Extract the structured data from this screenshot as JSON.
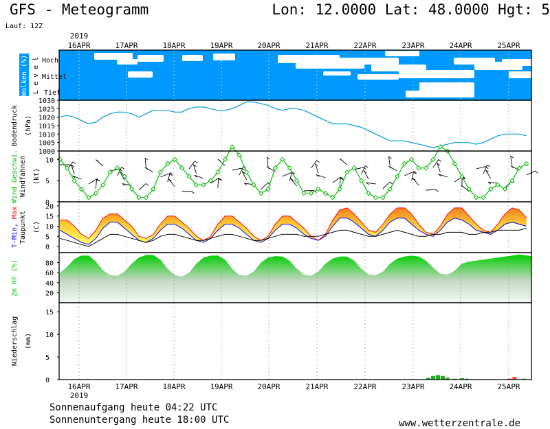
{
  "header": {
    "title": "GFS - Meteogramm",
    "location": "Lon: 12.0000 Lat: 48.0000 Hgt: 5",
    "run": "Lauf: 12Z"
  },
  "footer": {
    "sunrise": "Sonnenaufgang heute 04:22 UTC",
    "sunset": "Sonnenuntergang heute 18:00 UTC",
    "site": "www.wetterzentrale.de"
  },
  "colors": {
    "cloud_sky": "#0099ff",
    "cloud": "#ffffff",
    "pressure": "#0099dd",
    "wind": "#00bb00",
    "tmax": "#ff0000",
    "tmin": "#0000ff",
    "humidity": "#00cc00",
    "precip": "#22aa22"
  },
  "chart_data": {
    "type": "line",
    "x_labels": [
      "16APR",
      "17APR",
      "18APR",
      "19APR",
      "20APR",
      "21APR",
      "22APR",
      "23APR",
      "24APR",
      "25APR"
    ],
    "year_label": "2019",
    "panels": {
      "wolken": {
        "ylabel": "Wolken (%)",
        "ylabel2": "L e v e l",
        "levels": [
          "Hoch",
          "Mittel",
          "Tief"
        ]
      },
      "druck": {
        "ylabel": "Bodendruck",
        "unit": "(hPa)",
        "ylim": [
          1000,
          1030
        ],
        "ticks": [
          "1030",
          "1025",
          "1020",
          "1015",
          "1010",
          "1005",
          "1000"
        ],
        "values": [
          1020,
          1021,
          1020,
          1018,
          1016,
          1017,
          1020,
          1022,
          1023,
          1023,
          1022,
          1020,
          1022,
          1024,
          1024,
          1024,
          1023,
          1023,
          1025,
          1026,
          1026,
          1025,
          1024,
          1024,
          1025,
          1027,
          1029,
          1029,
          1028,
          1027,
          1025,
          1024,
          1025,
          1025,
          1024,
          1022,
          1020,
          1018,
          1016,
          1016,
          1016,
          1015,
          1014,
          1012,
          1010,
          1008,
          1006,
          1006,
          1006,
          1005,
          1004,
          1003,
          1002,
          1003,
          1004,
          1005,
          1005,
          1005,
          1004,
          1005,
          1007,
          1009,
          1010,
          1010,
          1010,
          1009
        ]
      },
      "wind": {
        "ylabel": "Wind Geschwi.",
        "ylabel2": "Windfahnen",
        "unit": "(kt)",
        "ylim": [
          0,
          12
        ],
        "ticks": [
          "10",
          "5",
          "0"
        ],
        "values": [
          10,
          8,
          5,
          3,
          1,
          2,
          4,
          7,
          8,
          6,
          3,
          1,
          1,
          3,
          7,
          9,
          10,
          8,
          6,
          4,
          4,
          5,
          7,
          10,
          13,
          11,
          7,
          4,
          2,
          3,
          8,
          10,
          8,
          5,
          2,
          2,
          3,
          2,
          1,
          3,
          7,
          8,
          5,
          2,
          1,
          1,
          3,
          6,
          9,
          10,
          8,
          8,
          10,
          13,
          12,
          9,
          6,
          3,
          1,
          1,
          3,
          4,
          3,
          5,
          8,
          9
        ]
      },
      "temp": {
        "ylabel": "T-Min, Max",
        "ylabel2": "Taupunkt",
        "unit": "(C)",
        "ylim": [
          -3,
          22
        ],
        "ticks": [
          "20",
          "15",
          "10",
          "5",
          "0"
        ],
        "series": [
          {
            "name": "T-Max",
            "values": [
              13,
              13,
              10,
              6,
              4,
              8,
              14,
              16,
              16,
              13,
              10,
              5,
              4,
              6,
              11,
              15,
              15,
              12,
              9,
              5,
              3,
              5,
              11,
              15,
              15,
              12,
              9,
              5,
              3,
              5,
              11,
              15,
              15,
              12,
              9,
              5,
              3,
              6,
              13,
              18,
              19,
              16,
              12,
              8,
              7,
              11,
              16,
              19,
              19,
              16,
              11,
              7,
              6,
              10,
              16,
              19,
              19,
              15,
              11,
              8,
              7,
              11,
              16,
              19,
              18,
              14
            ]
          },
          {
            "name": "T-Min",
            "values": [
              8,
              6,
              4,
              2,
              1,
              4,
              9,
              12,
              12,
              9,
              6,
              3,
              2,
              4,
              8,
              11,
              11,
              9,
              6,
              3,
              2,
              4,
              8,
              11,
              11,
              9,
              6,
              3,
              2,
              4,
              8,
              11,
              11,
              9,
              6,
              4,
              3,
              5,
              10,
              14,
              14,
              12,
              9,
              6,
              5,
              8,
              12,
              14,
              14,
              11,
              8,
              6,
              5,
              8,
              12,
              14,
              13,
              11,
              8,
              7,
              6,
              8,
              11,
              12,
              11,
              10
            ]
          },
          {
            "name": "Taupunkt",
            "values": [
              4,
              3,
              2,
              1,
              0,
              2,
              4,
              6,
              6,
              5,
              4,
              3,
              2,
              3,
              5,
              6,
              6,
              5,
              4,
              3,
              3,
              4,
              5,
              6,
              6,
              5,
              4,
              3,
              3,
              4,
              5,
              6,
              6,
              6,
              5,
              5,
              5,
              6,
              7,
              8,
              8,
              7,
              6,
              5,
              5,
              6,
              7,
              8,
              7,
              6,
              5,
              5,
              6,
              6,
              7,
              7,
              7,
              6,
              6,
              7,
              7,
              8,
              8,
              8,
              8,
              9
            ]
          }
        ]
      },
      "rf": {
        "ylabel": "2m RF (%)",
        "ylim": [
          0,
          100
        ],
        "ticks": [
          "80",
          "60",
          "40",
          "20"
        ],
        "values": [
          58,
          72,
          87,
          94,
          94,
          82,
          65,
          55,
          54,
          62,
          78,
          90,
          95,
          95,
          86,
          68,
          55,
          52,
          60,
          78,
          90,
          94,
          94,
          86,
          68,
          55,
          54,
          62,
          80,
          90,
          93,
          92,
          84,
          68,
          56,
          54,
          62,
          78,
          88,
          92,
          92,
          84,
          68,
          56,
          55,
          62,
          78,
          88,
          92,
          94,
          92,
          84,
          70,
          58,
          56,
          64,
          78,
          82,
          84,
          86,
          88,
          90,
          92,
          94,
          96,
          93
        ]
      },
      "niederschlag": {
        "ylabel": "Niederschlag",
        "unit": "(mm)",
        "ylim": [
          0,
          17
        ],
        "ticks": [
          "15",
          "10",
          "5",
          "0"
        ],
        "bars": [
          {
            "day": 7.3,
            "value": 0.4
          },
          {
            "day": 7.4,
            "value": 0.8
          },
          {
            "day": 7.5,
            "value": 1.0
          },
          {
            "day": 7.6,
            "value": 0.8
          },
          {
            "day": 7.7,
            "value": 0.4
          },
          {
            "day": 7.85,
            "value": 0.2
          },
          {
            "day": 8.0,
            "value": 0.3
          },
          {
            "day": 8.1,
            "value": 0.2
          },
          {
            "day": 9.0,
            "value": 0.2
          },
          {
            "day": 9.1,
            "value": 0.6
          },
          {
            "day": 9.3,
            "value": 0.2
          }
        ]
      }
    }
  }
}
